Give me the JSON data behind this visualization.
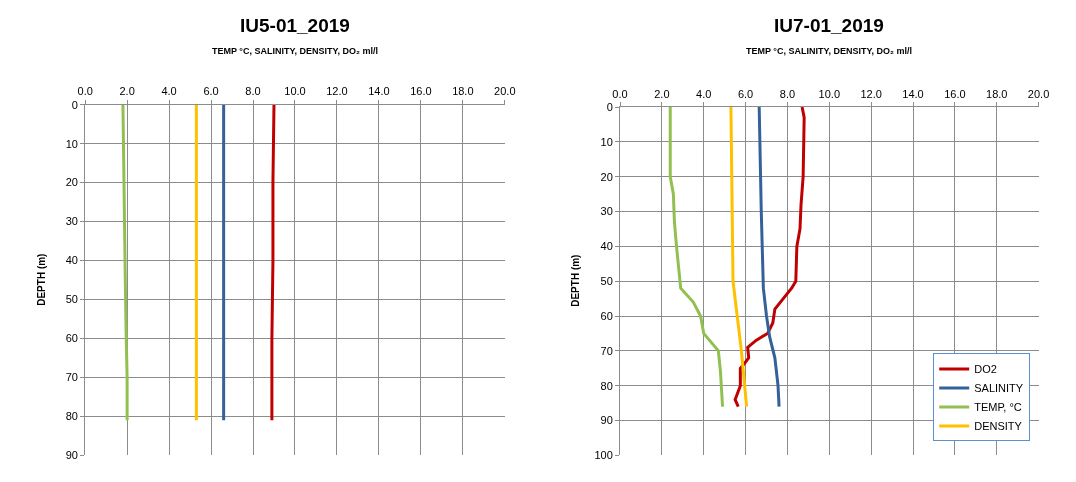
{
  "chart_data": [
    {
      "type": "line",
      "title": "IU5-01_2019",
      "xlabel": "TEMP °C, SALINITY, DENSITY, DO₂ ml/l",
      "ylabel": "DEPTH (m)",
      "xlim": [
        0,
        20
      ],
      "xticks": [
        {
          "value": 0,
          "label": "0.0"
        },
        {
          "value": 2,
          "label": "2.0"
        },
        {
          "value": 4,
          "label": "4.0"
        },
        {
          "value": 6,
          "label": "6.0"
        },
        {
          "value": 8,
          "label": "8.0"
        },
        {
          "value": 10,
          "label": "10.0"
        },
        {
          "value": 12,
          "label": "12.0"
        },
        {
          "value": 14,
          "label": "14.0"
        },
        {
          "value": 16,
          "label": "16.0"
        },
        {
          "value": 18,
          "label": "18.0"
        },
        {
          "value": 20,
          "label": "20.0"
        }
      ],
      "ylim": [
        90,
        0
      ],
      "yticks": [
        0,
        10,
        20,
        30,
        40,
        50,
        60,
        70,
        80,
        90
      ],
      "grid": true,
      "legend": false,
      "marker": "none",
      "line_style": "solid",
      "series": [
        {
          "color": "#c00000",
          "x": [
            9.0,
            8.95,
            8.95,
            8.9,
            8.9
          ],
          "values": [
            0,
            20,
            40,
            60,
            81
          ]
        },
        {
          "color": "#35619a",
          "x": [
            6.6,
            6.6
          ],
          "values": [
            0,
            81
          ]
        },
        {
          "color": "#92c050",
          "x": [
            1.8,
            1.85,
            1.9,
            1.95,
            2.0,
            2.0
          ],
          "values": [
            0,
            20,
            40,
            58,
            70,
            81
          ]
        },
        {
          "color": "#ffc000",
          "x": [
            5.3,
            5.3
          ],
          "values": [
            0,
            81
          ]
        }
      ]
    },
    {
      "type": "line",
      "title": "IU7-01_2019",
      "xlabel": "TEMP °C, SALINITY, DENSITY, DO₂ ml/l",
      "ylabel": "DEPTH (m)",
      "xlim": [
        0,
        20
      ],
      "xticks": [
        {
          "value": 0,
          "label": "0.0"
        },
        {
          "value": 2,
          "label": "2.0"
        },
        {
          "value": 4,
          "label": "4.0"
        },
        {
          "value": 6,
          "label": "6.0"
        },
        {
          "value": 8,
          "label": "8.0"
        },
        {
          "value": 10,
          "label": "10.0"
        },
        {
          "value": 12,
          "label": "12.0"
        },
        {
          "value": 14,
          "label": "14.0"
        },
        {
          "value": 16,
          "label": "16.0"
        },
        {
          "value": 18,
          "label": "18.0"
        },
        {
          "value": 20,
          "label": "20.0"
        }
      ],
      "ylim": [
        100,
        0
      ],
      "yticks": [
        0,
        10,
        20,
        30,
        40,
        50,
        60,
        70,
        80,
        90,
        100
      ],
      "grid": true,
      "legend": "bottom right",
      "marker": "none",
      "line_style": "solid",
      "series": [
        {
          "name": "DO2",
          "color": "#c00000",
          "x": [
            8.7,
            8.8,
            8.75,
            8.65,
            8.6,
            8.45,
            8.4,
            8.2,
            7.8,
            7.4,
            7.3,
            7.05,
            6.5,
            6.1,
            6.15,
            5.9,
            5.75,
            5.75,
            5.5,
            5.65
          ],
          "values": [
            0,
            3,
            20,
            28,
            35,
            40,
            50,
            52,
            55,
            58,
            62,
            65,
            67,
            69,
            72,
            74,
            75,
            80,
            84,
            86
          ]
        },
        {
          "name": "SALINITY",
          "color": "#35619a",
          "x": [
            6.65,
            6.75,
            6.85,
            7.0,
            7.15,
            7.4,
            7.55,
            7.6
          ],
          "values": [
            0,
            30,
            52,
            60,
            66,
            72,
            80,
            86
          ]
        },
        {
          "name": "TEMP, °C",
          "color": "#92c050",
          "x": [
            2.4,
            2.4,
            2.55,
            2.6,
            2.7,
            2.9,
            3.5,
            3.85,
            4.0,
            4.7,
            4.8,
            4.9
          ],
          "values": [
            0,
            20,
            25,
            33,
            40,
            52,
            56,
            60,
            65,
            70,
            76,
            86
          ]
        },
        {
          "name": "DENSITY",
          "color": "#ffc000",
          "x": [
            5.3,
            5.4,
            5.6,
            5.8,
            6.05
          ],
          "values": [
            0,
            50,
            60,
            70,
            86
          ]
        }
      ]
    }
  ]
}
